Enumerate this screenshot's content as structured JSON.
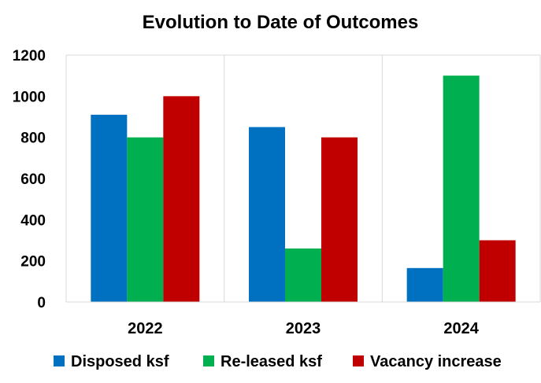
{
  "chart_data": {
    "type": "bar",
    "title": "Evolution to Date of Outcomes",
    "categories": [
      "2022",
      "2023",
      "2024"
    ],
    "series": [
      {
        "name": "Disposed ksf",
        "values": [
          910,
          850,
          165
        ],
        "color": "#0070C0"
      },
      {
        "name": "Re-leased ksf",
        "values": [
          800,
          260,
          1100
        ],
        "color": "#00B050"
      },
      {
        "name": "Vacancy increase",
        "values": [
          1000,
          800,
          300
        ],
        "color": "#C00000"
      }
    ],
    "yticks": [
      0,
      200,
      400,
      600,
      800,
      1000,
      1200
    ],
    "ylim": [
      0,
      1200
    ],
    "grid": "vertical category separators",
    "legend_position": "bottom"
  }
}
